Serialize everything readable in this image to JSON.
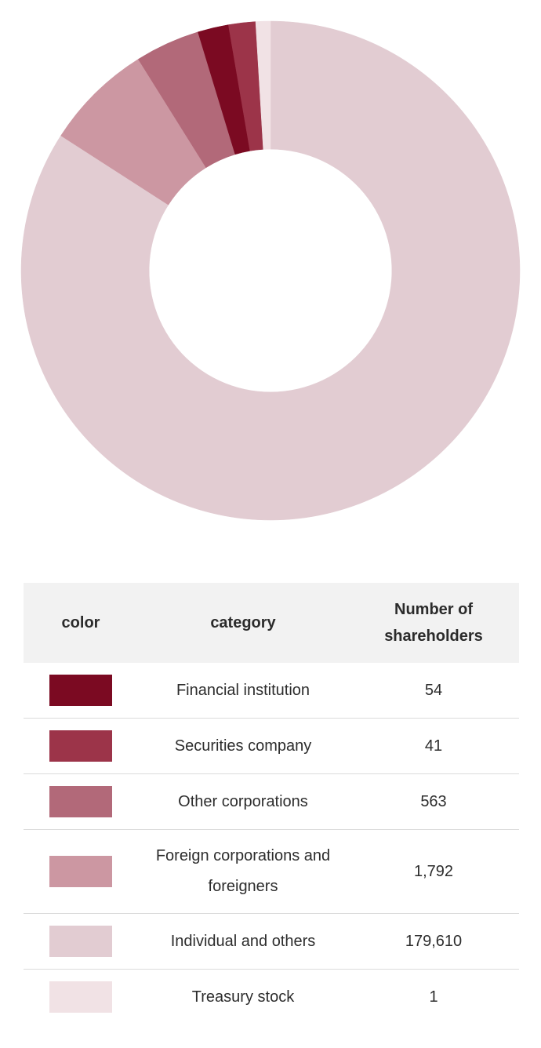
{
  "chart_data": {
    "type": "pie",
    "subtype": "donut",
    "title": "",
    "direction": "clockwise",
    "start_angle_deg": 0,
    "inner_radius_ratio": 0.487,
    "legend_position": "table-below-chart",
    "categories": [
      "Individual and others",
      "Foreign corporations and foreigners",
      "Other corporations",
      "Financial institution",
      "Securities company",
      "Treasury stock"
    ],
    "values": [
      84.1,
      7.0,
      4.2,
      2.0,
      1.75,
      0.95
    ],
    "values_note": "estimated share of circle (%) measured from arc angles; table below lists number of shareholders",
    "colors": [
      "#E2CCD2",
      "#CC97A2",
      "#B26979",
      "#7B0A22",
      "#9C3449",
      "#F1E2E5"
    ]
  },
  "table": {
    "headers": {
      "color": "color",
      "category": "category",
      "count": "Number of shareholders"
    },
    "rows": [
      {
        "category": "Financial institution",
        "count": "54",
        "color": "#7B0A22"
      },
      {
        "category": "Securities company",
        "count": "41",
        "color": "#9C3449"
      },
      {
        "category": "Other corporations",
        "count": "563",
        "color": "#B26979"
      },
      {
        "category": "Foreign corporations and foreigners",
        "count": "1,792",
        "color": "#CC97A2"
      },
      {
        "category": "Individual and others",
        "count": "179,610",
        "color": "#E2CCD2"
      },
      {
        "category": "Treasury stock",
        "count": "1",
        "color": "#F1E2E5"
      }
    ]
  },
  "colors": {
    "page_background": "#FFFFFF",
    "header_background": "#F2F2F2",
    "row_divider": "#DBDBDB",
    "text": "#2D2D2D"
  }
}
